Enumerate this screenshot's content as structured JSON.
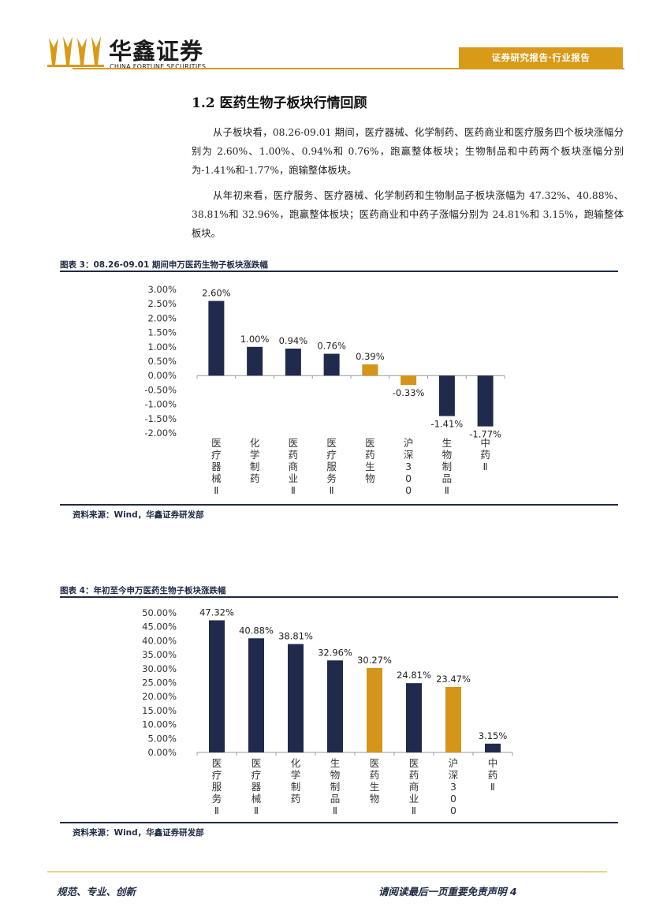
{
  "header": {
    "logo_cn": "华鑫证券",
    "logo_en": "CHINA FORTUNE SECURITIES",
    "tag": "证券研究报告·行业报告",
    "accent_color": "#d89a17"
  },
  "section": {
    "title": "1.2 医药生物子板块行情回顾",
    "para1": "从子板块看，08.26-09.01 期间，医疗器械、化学制药、医药商业和医疗服务四个板块涨幅分别为 2.60%、1.00%、0.94%和 0.76%，跑赢整体板块；生物制品和中药两个板块涨幅分别为-1.41%和-1.77%，跑输整体板块。",
    "para2": "从年初来看，医疗服务、医疗器械、化学制药和生物制品子板块涨幅为 47.32%、40.88%、38.81%和 32.96%，跑赢整体板块；医药商业和中药子涨幅分别为 24.81%和 3.15%，跑输整体板块。"
  },
  "figure3": {
    "title": "图表 3：08.26-09.01 期间申万医药生物子板块涨跌幅",
    "source": "资料来源：Wind，华鑫证券研发部"
  },
  "figure4": {
    "title": "图表 4：年初至今申万医药生物子板块涨跌幅",
    "source": "资料来源：Wind，华鑫证券研发部"
  },
  "footer": {
    "left": "规范、专业、创新",
    "right": "请阅读最后一页重要免责声明 4"
  },
  "chart_data": [
    {
      "type": "bar",
      "categories": [
        "医疗器械Ⅱ",
        "化学制药",
        "医药商业Ⅱ",
        "医疗服务Ⅱ",
        "医药生物",
        "沪深300",
        "生物制品Ⅱ",
        "中药Ⅱ"
      ],
      "values": [
        2.6,
        1.0,
        0.94,
        0.76,
        0.39,
        -0.33,
        -1.41,
        -1.77
      ],
      "value_labels": [
        "2.60%",
        "1.00%",
        "0.94%",
        "0.76%",
        "0.39%",
        "-0.33%",
        "-1.41%",
        "-1.77%"
      ],
      "y_ticks": [
        "3.00%",
        "2.50%",
        "2.00%",
        "1.50%",
        "1.00%",
        "0.50%",
        "0.00%",
        "-0.50%",
        "-1.00%",
        "-1.50%",
        "-2.00%"
      ],
      "ylim": [
        -2.0,
        3.0
      ],
      "bar_colors": [
        "#1f2a4d",
        "#1f2a4d",
        "#1f2a4d",
        "#1f2a4d",
        "#d4951a",
        "#d4951a",
        "#1f2a4d",
        "#1f2a4d"
      ],
      "grid": false,
      "legend": "none"
    },
    {
      "type": "bar",
      "categories": [
        "医疗服务Ⅱ",
        "医疗器械Ⅱ",
        "化学制药",
        "生物制品Ⅱ",
        "医药生物",
        "医药商业Ⅱ",
        "沪深300",
        "中药Ⅱ"
      ],
      "values": [
        47.32,
        40.88,
        38.81,
        32.96,
        30.27,
        24.81,
        23.47,
        3.15
      ],
      "value_labels": [
        "47.32%",
        "40.88%",
        "38.81%",
        "32.96%",
        "30.27%",
        "24.81%",
        "23.47%",
        "3.15%"
      ],
      "y_ticks": [
        "50.00%",
        "45.00%",
        "40.00%",
        "35.00%",
        "30.00%",
        "25.00%",
        "20.00%",
        "15.00%",
        "10.00%",
        "5.00%",
        "0.00%"
      ],
      "ylim": [
        0,
        50
      ],
      "bar_colors": [
        "#1f2a4d",
        "#1f2a4d",
        "#1f2a4d",
        "#1f2a4d",
        "#d4951a",
        "#1f2a4d",
        "#d4951a",
        "#1f2a4d"
      ],
      "grid": false,
      "legend": "none"
    }
  ]
}
